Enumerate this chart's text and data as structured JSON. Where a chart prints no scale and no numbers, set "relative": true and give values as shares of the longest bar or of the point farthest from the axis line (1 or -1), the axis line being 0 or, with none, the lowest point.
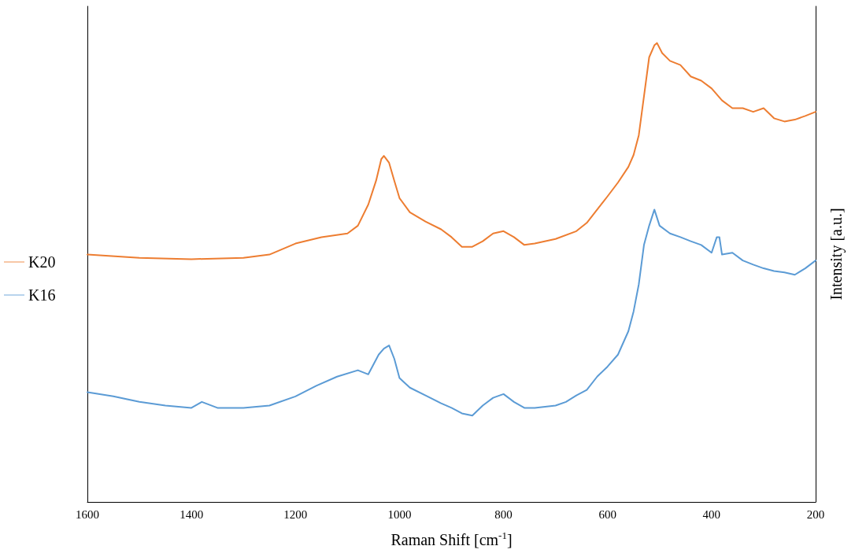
{
  "chart_data": {
    "type": "line",
    "relative": true,
    "xlabel": "Raman Shift [cm$^{-1}$]",
    "ylabel": "Intensity [a.u.]",
    "xlim": [
      1600,
      200
    ],
    "xticks": [
      1600,
      1400,
      1200,
      1000,
      800,
      600,
      400,
      200
    ],
    "grid": false,
    "legend": "left",
    "marker": "none",
    "line_style": "solid",
    "x": [
      1600,
      1500,
      1400,
      1300,
      1250,
      1200,
      1150,
      1100,
      1080,
      1060,
      1045,
      1035,
      1030,
      1020,
      1010,
      1000,
      980,
      950,
      920,
      900,
      880,
      860,
      840,
      820,
      800,
      780,
      760,
      740,
      700,
      660,
      640,
      620,
      600,
      580,
      560,
      550,
      540,
      530,
      520,
      510,
      505,
      495,
      480,
      460,
      440,
      420,
      400,
      380,
      360,
      340,
      320,
      300,
      280,
      260,
      240,
      220,
      200
    ],
    "series": [
      {
        "name": "K20",
        "color": "#ed7d31",
        "values": [
          0.539,
          0.532,
          0.529,
          0.532,
          0.539,
          0.563,
          0.577,
          0.585,
          0.602,
          0.648,
          0.7,
          0.747,
          0.754,
          0.739,
          0.7,
          0.662,
          0.631,
          0.611,
          0.594,
          0.577,
          0.556,
          0.556,
          0.568,
          0.585,
          0.59,
          0.577,
          0.56,
          0.563,
          0.573,
          0.59,
          0.608,
          0.637,
          0.666,
          0.696,
          0.73,
          0.756,
          0.799,
          0.884,
          0.969,
          0.995,
          1.0,
          0.978,
          0.961,
          0.952,
          0.927,
          0.918,
          0.901,
          0.875,
          0.858,
          0.858,
          0.85,
          0.858,
          0.836,
          0.829,
          0.833,
          0.841,
          0.85
        ]
      },
      {
        "name": "K16",
        "color": "#5b9bd5",
        "x": [
          1600,
          1550,
          1500,
          1450,
          1400,
          1380,
          1350,
          1300,
          1250,
          1200,
          1160,
          1120,
          1080,
          1060,
          1040,
          1030,
          1020,
          1010,
          1000,
          980,
          950,
          920,
          900,
          880,
          860,
          840,
          820,
          800,
          780,
          760,
          740,
          700,
          680,
          660,
          640,
          620,
          600,
          580,
          560,
          550,
          540,
          530,
          520,
          510,
          500,
          480,
          460,
          440,
          420,
          400,
          390,
          385,
          380,
          360,
          340,
          320,
          300,
          280,
          260,
          240,
          220,
          200
        ],
        "values": [
          0.239,
          0.23,
          0.218,
          0.21,
          0.205,
          0.218,
          0.205,
          0.205,
          0.21,
          0.23,
          0.253,
          0.273,
          0.287,
          0.278,
          0.321,
          0.334,
          0.341,
          0.312,
          0.27,
          0.249,
          0.232,
          0.215,
          0.205,
          0.193,
          0.188,
          0.21,
          0.227,
          0.235,
          0.218,
          0.205,
          0.205,
          0.21,
          0.218,
          0.232,
          0.244,
          0.273,
          0.295,
          0.321,
          0.372,
          0.415,
          0.474,
          0.56,
          0.602,
          0.637,
          0.602,
          0.585,
          0.577,
          0.568,
          0.56,
          0.543,
          0.577,
          0.577,
          0.539,
          0.543,
          0.526,
          0.517,
          0.509,
          0.503,
          0.5,
          0.495,
          0.509,
          0.526
        ]
      }
    ]
  }
}
